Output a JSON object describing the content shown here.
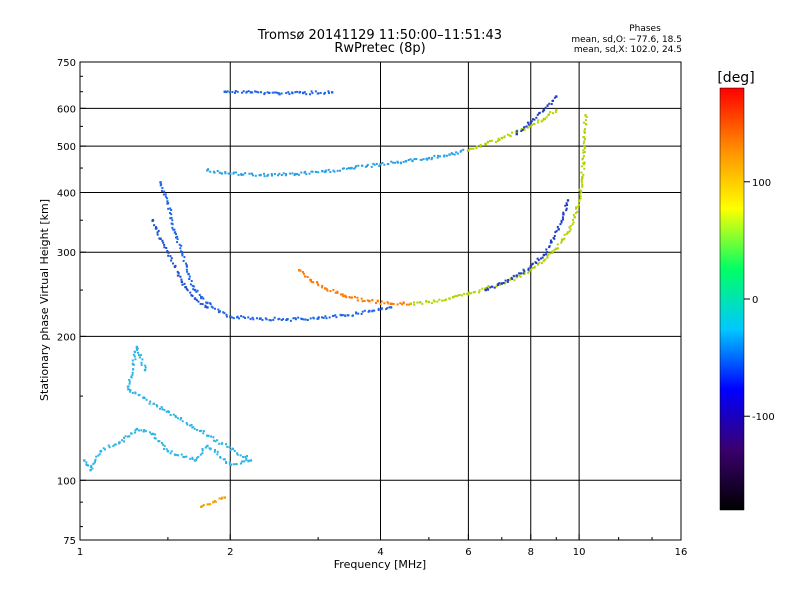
{
  "chart_data": {
    "type": "scatter",
    "title": "Tromsø 20141129 11:50:00–11:51:43",
    "subtitle": "RwPretec (8p)",
    "xlabel": "Frequency [MHz]",
    "ylabel": "Stationary phase Virtual Height [km]",
    "xscale": "log",
    "yscale": "log",
    "xlim": [
      1,
      16
    ],
    "ylim": [
      75,
      750
    ],
    "x_ticks": [
      1,
      2,
      4,
      6,
      8,
      10,
      16
    ],
    "y_ticks": [
      75,
      100,
      200,
      300,
      400,
      500,
      600,
      750
    ],
    "grid": true,
    "stats": {
      "heading": "Phases",
      "line1": "mean, sd,O: −77.6, 18.5",
      "line2": "mean, sd,X: 102.0, 24.5"
    },
    "colorbar": {
      "label": "[deg]",
      "ticks": [
        100,
        0,
        -100
      ],
      "range": [
        -180,
        180
      ],
      "colors": [
        "#000000",
        "#3a006e",
        "#0000ff",
        "#00c8ff",
        "#00ff64",
        "#ffff00",
        "#ff8c00",
        "#ff0000"
      ]
    },
    "series": [
      {
        "color": "#1e64e6",
        "points": [
          [
            1.45,
            420
          ],
          [
            1.5,
            380
          ],
          [
            1.55,
            330
          ],
          [
            1.6,
            300
          ],
          [
            1.65,
            270
          ],
          [
            1.7,
            250
          ],
          [
            1.8,
            235
          ],
          [
            1.9,
            225
          ],
          [
            2.0,
            220
          ],
          [
            2.3,
            218
          ],
          [
            2.6,
            217
          ],
          [
            3.0,
            218
          ],
          [
            3.4,
            221
          ],
          [
            3.8,
            226
          ],
          [
            4.2,
            230
          ]
        ]
      },
      {
        "color": "#1e50d2",
        "points": [
          [
            1.4,
            350
          ],
          [
            1.45,
            320
          ],
          [
            1.5,
            300
          ],
          [
            1.55,
            280
          ],
          [
            1.6,
            260
          ],
          [
            1.7,
            240
          ],
          [
            1.8,
            230
          ]
        ]
      },
      {
        "color": "#ff7800",
        "points": [
          [
            2.75,
            275
          ],
          [
            2.9,
            262
          ],
          [
            3.1,
            252
          ],
          [
            3.4,
            243
          ],
          [
            3.8,
            237
          ],
          [
            4.2,
            234
          ],
          [
            4.6,
            234
          ]
        ]
      },
      {
        "color": "#b4d200",
        "points": [
          [
            4.6,
            234
          ],
          [
            5.0,
            236
          ],
          [
            5.5,
            240
          ],
          [
            6.0,
            245
          ],
          [
            6.5,
            252
          ],
          [
            7.0,
            258
          ],
          [
            7.5,
            266
          ],
          [
            8.0,
            275
          ],
          [
            8.5,
            288
          ],
          [
            9.0,
            305
          ],
          [
            9.5,
            330
          ],
          [
            9.8,
            355
          ],
          [
            10.0,
            385
          ],
          [
            10.15,
            430
          ],
          [
            10.25,
            500
          ],
          [
            10.3,
            580
          ]
        ]
      },
      {
        "color": "#1e3cc8",
        "points": [
          [
            6.5,
            250
          ],
          [
            7.0,
            258
          ],
          [
            7.5,
            268
          ],
          [
            8.0,
            280
          ],
          [
            8.5,
            296
          ],
          [
            8.8,
            315
          ],
          [
            9.1,
            335
          ],
          [
            9.3,
            360
          ],
          [
            9.5,
            385
          ]
        ]
      },
      {
        "color": "#28a0e6",
        "points": [
          [
            1.8,
            445
          ],
          [
            2.0,
            438
          ],
          [
            2.3,
            435
          ],
          [
            2.7,
            437
          ],
          [
            3.1,
            442
          ],
          [
            3.5,
            450
          ],
          [
            4.0,
            458
          ],
          [
            4.5,
            465
          ],
          [
            5.0,
            472
          ],
          [
            5.5,
            480
          ],
          [
            6.0,
            490
          ]
        ]
      },
      {
        "color": "#b4d200",
        "points": [
          [
            6.0,
            490
          ],
          [
            6.5,
            505
          ],
          [
            7.0,
            520
          ],
          [
            7.5,
            535
          ],
          [
            8.0,
            550
          ],
          [
            8.5,
            570
          ],
          [
            9.0,
            595
          ]
        ]
      },
      {
        "color": "#1e3cc8",
        "points": [
          [
            7.5,
            530
          ],
          [
            8.0,
            560
          ],
          [
            8.5,
            595
          ],
          [
            9.0,
            635
          ]
        ]
      },
      {
        "color": "#1e64e6",
        "points": [
          [
            1.95,
            650
          ],
          [
            2.2,
            648
          ],
          [
            2.5,
            645
          ],
          [
            2.8,
            646
          ],
          [
            3.2,
            648
          ]
        ]
      },
      {
        "color": "#28b4e6",
        "points": [
          [
            1.02,
            110
          ],
          [
            1.05,
            105
          ],
          [
            1.1,
            115
          ],
          [
            1.2,
            120
          ],
          [
            1.3,
            128
          ],
          [
            1.4,
            125
          ],
          [
            1.5,
            115
          ],
          [
            1.7,
            110
          ],
          [
            1.8,
            118
          ],
          [
            2.0,
            108
          ],
          [
            2.2,
            110
          ],
          [
            1.25,
            155
          ],
          [
            1.3,
            190
          ],
          [
            1.35,
            170
          ]
        ]
      },
      {
        "color": "#f0a000",
        "points": [
          [
            1.75,
            88
          ],
          [
            1.85,
            90
          ],
          [
            1.95,
            92
          ]
        ]
      }
    ]
  }
}
